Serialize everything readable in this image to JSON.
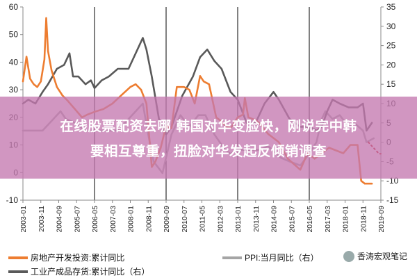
{
  "chart_data": {
    "type": "line",
    "title": "",
    "xlabel": "",
    "ylabel_left": "",
    "ylabel_right": "",
    "ylim_left": [
      -10,
      60
    ],
    "ylim_right": [
      -15,
      35
    ],
    "yticks_left": [
      "-10",
      "0",
      "10",
      "20",
      "30",
      "40",
      "50",
      "60"
    ],
    "yticks_right": [
      "-15",
      "-10",
      "-5",
      "0",
      "5",
      "10",
      "15",
      "20",
      "25",
      "30",
      "35"
    ],
    "x_range": [
      "2003-01",
      "2019-09"
    ],
    "x_tick_labels": [
      "2003-01",
      "2003-11",
      "2004-09",
      "2005-07",
      "2006-05",
      "2007-03",
      "2008-01",
      "2008-11",
      "2009-09",
      "2010-07",
      "2011-05",
      "2012-03",
      "2013-01",
      "2013-11",
      "2014-09",
      "2015-07",
      "2016-05",
      "2017-03",
      "2018-01",
      "2018-11",
      "2019-09"
    ],
    "vertical_markers": [
      "2006-05",
      "2009-09",
      "2013-01",
      "2016-05",
      "2019-09"
    ],
    "grid": false,
    "legend_position": "bottom",
    "series": [
      {
        "name": "房地产开发投资:累计同比",
        "axis": "left",
        "color": "#ed7d31",
        "points": [
          [
            "2003-01",
            33
          ],
          [
            "2003-03",
            42
          ],
          [
            "2003-05",
            34
          ],
          [
            "2003-07",
            32
          ],
          [
            "2003-09",
            31
          ],
          [
            "2003-11",
            33
          ],
          [
            "2004-01",
            41
          ],
          [
            "2004-02",
            56
          ],
          [
            "2004-03",
            44
          ],
          [
            "2004-05",
            37
          ],
          [
            "2004-08",
            31
          ],
          [
            "2004-11",
            28
          ],
          [
            "2005-02",
            26
          ],
          [
            "2005-06",
            23
          ],
          [
            "2005-10",
            20
          ],
          [
            "2006-01",
            21
          ],
          [
            "2006-05",
            22
          ],
          [
            "2006-10",
            23
          ],
          [
            "2007-03",
            25
          ],
          [
            "2007-08",
            28
          ],
          [
            "2008-01",
            31
          ],
          [
            "2008-04",
            32
          ],
          [
            "2008-07",
            30
          ],
          [
            "2008-10",
            25
          ],
          [
            "2009-01",
            2
          ],
          [
            "2009-03",
            4
          ],
          [
            "2009-06",
            9
          ],
          [
            "2009-09",
            17
          ],
          [
            "2009-12",
            16
          ],
          [
            "2010-03",
            31
          ],
          [
            "2010-07",
            31
          ],
          [
            "2010-10",
            30
          ],
          [
            "2011-01",
            25
          ],
          [
            "2011-04",
            35
          ],
          [
            "2011-06",
            33
          ],
          [
            "2011-09",
            32
          ],
          [
            "2012-01",
            20
          ],
          [
            "2012-03",
            19
          ],
          [
            "2012-06",
            17
          ],
          [
            "2012-09",
            16
          ],
          [
            "2013-01",
            20
          ],
          [
            "2013-04",
            21
          ],
          [
            "2013-05",
            27
          ],
          [
            "2013-07",
            20
          ],
          [
            "2013-11",
            19
          ],
          [
            "2014-01",
            18
          ],
          [
            "2014-06",
            14
          ],
          [
            "2014-12",
            11
          ],
          [
            "2015-05",
            5
          ],
          [
            "2015-12",
            1
          ],
          [
            "2016-04",
            7
          ],
          [
            "2016-08",
            5
          ],
          [
            "2016-12",
            7
          ],
          [
            "2017-04",
            9
          ],
          [
            "2017-08",
            8
          ],
          [
            "2017-12",
            7
          ],
          [
            "2018-04",
            10
          ],
          [
            "2018-08",
            10
          ],
          [
            "2018-10",
            -3
          ],
          [
            "2018-12",
            -4
          ],
          [
            "2019-04",
            -4
          ]
        ]
      },
      {
        "name": "PPI:当月同比（右）",
        "axis": "right",
        "color": "#a5a5a5",
        "points": [
          [
            "2003-01",
            3
          ],
          [
            "2003-06",
            3
          ],
          [
            "2003-12",
            3
          ],
          [
            "2004-06",
            6
          ],
          [
            "2004-10",
            8
          ],
          [
            "2005-01",
            6
          ],
          [
            "2005-06",
            5
          ],
          [
            "2005-12",
            3
          ],
          [
            "2006-06",
            3
          ],
          [
            "2006-12",
            3
          ],
          [
            "2007-06",
            3
          ],
          [
            "2007-12",
            6
          ],
          [
            "2008-04",
            8
          ],
          [
            "2008-08",
            10
          ],
          [
            "2008-11",
            2
          ],
          [
            "2009-02",
            -5
          ],
          [
            "2009-07",
            -8
          ],
          [
            "2009-12",
            2
          ],
          [
            "2010-05",
            7
          ],
          [
            "2010-10",
            4
          ],
          [
            "2011-03",
            7
          ],
          [
            "2011-07",
            7
          ],
          [
            "2011-12",
            2
          ],
          [
            "2012-06",
            -2
          ],
          [
            "2012-09",
            -3
          ],
          [
            "2013-01",
            -2
          ],
          [
            "2013-06",
            -2
          ],
          [
            "2014-01",
            -2
          ],
          [
            "2014-06",
            -1
          ],
          [
            "2015-01",
            -4
          ],
          [
            "2015-06",
            -5
          ],
          [
            "2015-12",
            -6
          ],
          [
            "2016-05",
            -3
          ],
          [
            "2016-09",
            0
          ],
          [
            "2016-12",
            6
          ],
          [
            "2017-02",
            8
          ],
          [
            "2017-06",
            6
          ],
          [
            "2017-10",
            7
          ],
          [
            "2018-03",
            4
          ],
          [
            "2018-06",
            5
          ],
          [
            "2018-11",
            3
          ],
          [
            "2019-01",
            0
          ],
          [
            "2019-05",
            1
          ]
        ]
      },
      {
        "name": "工业产成品存货:累计同比（右）",
        "axis": "right",
        "color": "#595959",
        "points": [
          [
            "2003-01",
            10
          ],
          [
            "2003-04",
            11
          ],
          [
            "2003-08",
            10
          ],
          [
            "2003-12",
            13
          ],
          [
            "2004-03",
            15
          ],
          [
            "2004-08",
            19
          ],
          [
            "2004-12",
            20
          ],
          [
            "2005-03",
            23
          ],
          [
            "2005-05",
            17
          ],
          [
            "2005-08",
            17
          ],
          [
            "2005-12",
            15
          ],
          [
            "2006-03",
            16
          ],
          [
            "2006-05",
            14
          ],
          [
            "2006-09",
            16
          ],
          [
            "2007-01",
            17
          ],
          [
            "2007-06",
            19
          ],
          [
            "2007-12",
            19
          ],
          [
            "2008-06",
            25
          ],
          [
            "2008-08",
            27
          ],
          [
            "2008-10",
            24
          ],
          [
            "2009-01",
            17
          ],
          [
            "2009-05",
            6
          ],
          [
            "2009-09",
            2
          ],
          [
            "2009-12",
            4
          ],
          [
            "2010-06",
            12
          ],
          [
            "2010-12",
            17
          ],
          [
            "2011-04",
            22
          ],
          [
            "2011-08",
            24
          ],
          [
            "2011-12",
            21
          ],
          [
            "2012-04",
            19
          ],
          [
            "2012-09",
            13
          ],
          [
            "2013-01",
            11
          ],
          [
            "2013-06",
            5
          ],
          [
            "2013-11",
            5
          ],
          [
            "2014-04",
            10
          ],
          [
            "2014-09",
            13
          ],
          [
            "2014-12",
            11
          ],
          [
            "2015-06",
            6
          ],
          [
            "2015-12",
            4
          ],
          [
            "2016-05",
            4
          ],
          [
            "2016-09",
            3
          ],
          [
            "2016-12",
            4
          ],
          [
            "2017-03",
            8
          ],
          [
            "2017-06",
            11
          ],
          [
            "2017-10",
            10
          ],
          [
            "2018-03",
            9
          ],
          [
            "2018-08",
            9
          ],
          [
            "2018-11",
            10
          ],
          [
            "2019-01",
            3
          ],
          [
            "2019-04",
            5
          ]
        ]
      },
      {
        "name": "",
        "axis": "right",
        "color": "#c00000",
        "dashed": true,
        "points": [
          [
            "2019-02",
            0
          ],
          [
            "2019-04",
            -1
          ],
          [
            "2019-06",
            -2
          ],
          [
            "2019-08",
            -3
          ],
          [
            "2019-09",
            -3
          ]
        ]
      }
    ]
  },
  "banner": {
    "line1": "在线股票配资去哪 韩国对华变脸快，刚说完中韩",
    "line2": "要相互尊重，扭脸对华发起反倾销调查"
  },
  "legend": {
    "item1": "房地产开发投资:累计同比",
    "item2": "PPI:当月同比（右）",
    "item3": "工业产成品存货:累计同比（右）"
  },
  "watermark": {
    "text": "香涛宏观笔记"
  }
}
